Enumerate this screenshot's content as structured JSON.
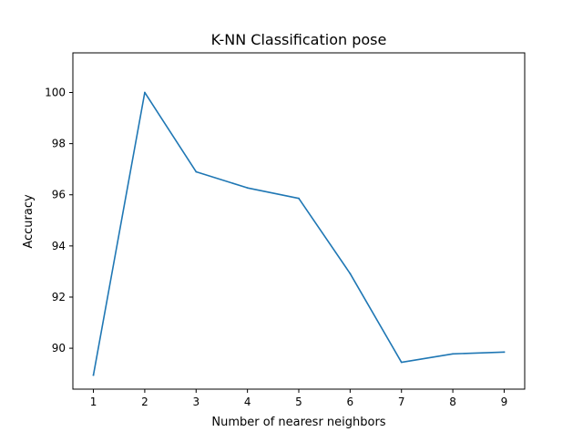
{
  "chart_data": {
    "type": "line",
    "title": "K-NN Classification pose",
    "xlabel": "Number of nearesr neighbors",
    "ylabel": "Accuracy",
    "x": [
      1,
      2,
      3,
      4,
      5,
      6,
      7,
      8,
      9
    ],
    "series": [
      {
        "values": [
          88.95,
          100.0,
          96.9,
          96.27,
          95.86,
          92.92,
          89.45,
          89.78,
          89.85
        ]
      }
    ],
    "xlim": [
      0.6,
      9.4
    ],
    "ylim": [
      88.4,
      101.55
    ],
    "xticks": [
      "1",
      "2",
      "3",
      "4",
      "5",
      "6",
      "7",
      "8",
      "9"
    ],
    "yticks": [
      "90",
      "92",
      "94",
      "96",
      "98",
      "100"
    ],
    "line_color": "#1f77b4",
    "grid": false,
    "legend": false
  }
}
